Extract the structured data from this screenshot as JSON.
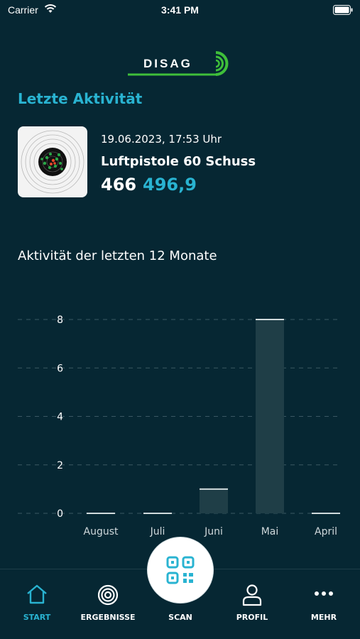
{
  "status_bar": {
    "carrier": "Carrier",
    "time": "3:41 PM"
  },
  "header": {
    "logo_text": "DISAG"
  },
  "last_activity": {
    "title": "Letzte Aktivität",
    "date": "19.06.2023, 17:53 Uhr",
    "discipline": "Luftpistole 60 Schuss",
    "score": "466",
    "score_decimal": "496,9"
  },
  "chart_section": {
    "title": "Aktivität der letzten 12 Monate"
  },
  "chart_data": {
    "type": "bar",
    "categories": [
      "August",
      "Juli",
      "Juni",
      "Mai",
      "April"
    ],
    "values": [
      0,
      0,
      1,
      8,
      0
    ],
    "y_ticks": [
      "0",
      "2",
      "4",
      "6",
      "8"
    ],
    "ylim": [
      0,
      8
    ],
    "grid": true,
    "bar_color": "#1f3e47",
    "bar_top_color": "#d0dadc"
  },
  "tabbar": {
    "items": [
      {
        "label": "START",
        "icon": "home-icon",
        "active": true
      },
      {
        "label": "ERGEBNISSE",
        "icon": "target-icon",
        "active": false
      },
      {
        "label": "SCAN",
        "icon": "qr-code-icon",
        "active": false
      },
      {
        "label": "PROFIL",
        "icon": "user-icon",
        "active": false
      },
      {
        "label": "MEHR",
        "icon": "more-dots-icon",
        "active": false
      }
    ]
  },
  "colors": {
    "background": "#062733",
    "accent": "#29b3d1",
    "logo_green": "#3fbf3a"
  }
}
